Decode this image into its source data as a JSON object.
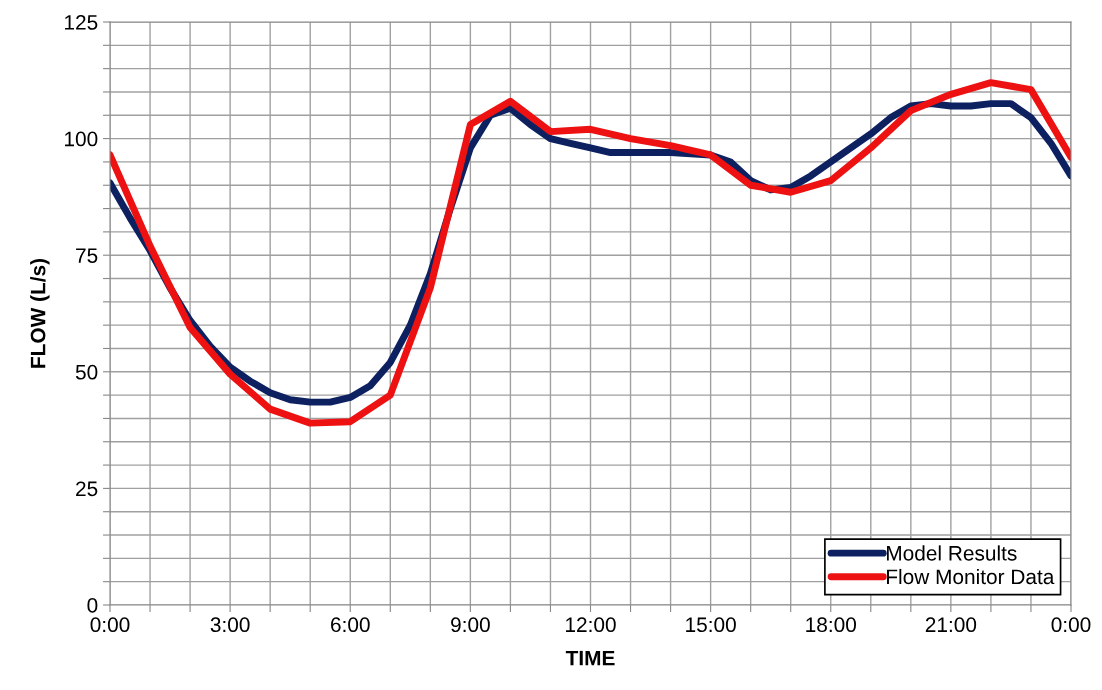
{
  "chart_data": {
    "type": "line",
    "xlabel": "TIME",
    "ylabel": "FLOW (L/s)",
    "xlim": [
      0,
      24
    ],
    "ylim": [
      0,
      125
    ],
    "xticks": [
      {
        "value": 0,
        "label": "0:00"
      },
      {
        "value": 1,
        "label": null
      },
      {
        "value": 2,
        "label": null
      },
      {
        "value": 3,
        "label": "3:00"
      },
      {
        "value": 4,
        "label": null
      },
      {
        "value": 5,
        "label": null
      },
      {
        "value": 6,
        "label": "6:00"
      },
      {
        "value": 7,
        "label": null
      },
      {
        "value": 8,
        "label": null
      },
      {
        "value": 9,
        "label": "9:00"
      },
      {
        "value": 10,
        "label": null
      },
      {
        "value": 11,
        "label": null
      },
      {
        "value": 12,
        "label": "12:00"
      },
      {
        "value": 13,
        "label": null
      },
      {
        "value": 14,
        "label": null
      },
      {
        "value": 15,
        "label": "15:00"
      },
      {
        "value": 16,
        "label": null
      },
      {
        "value": 17,
        "label": null
      },
      {
        "value": 18,
        "label": "18:00"
      },
      {
        "value": 19,
        "label": null
      },
      {
        "value": 20,
        "label": null
      },
      {
        "value": 21,
        "label": "21:00"
      },
      {
        "value": 22,
        "label": null
      },
      {
        "value": 23,
        "label": null
      },
      {
        "value": 24,
        "label": "0:00"
      }
    ],
    "yticks": [
      0,
      {
        "value": 5,
        "label": null
      },
      {
        "value": 10,
        "label": null
      },
      {
        "value": 15,
        "label": null
      },
      {
        "value": 20,
        "label": null
      },
      25,
      {
        "value": 30,
        "label": null
      },
      {
        "value": 35,
        "label": null
      },
      {
        "value": 40,
        "label": null
      },
      {
        "value": 45,
        "label": null
      },
      50,
      {
        "value": 55,
        "label": null
      },
      {
        "value": 60,
        "label": null
      },
      {
        "value": 65,
        "label": null
      },
      {
        "value": 70,
        "label": null
      },
      75,
      {
        "value": 80,
        "label": null
      },
      {
        "value": 85,
        "label": null
      },
      {
        "value": 90,
        "label": null
      },
      {
        "value": 95,
        "label": null
      },
      100,
      {
        "value": 105,
        "label": null
      },
      {
        "value": 110,
        "label": null
      },
      {
        "value": 115,
        "label": null
      },
      {
        "value": 120,
        "label": null
      },
      125
    ],
    "grid": true,
    "legend": "bottom right",
    "line_style": "solid",
    "marker": "none",
    "series": [
      {
        "name": "Model Results",
        "color": "#0d2160",
        "x": [
          0,
          0.5,
          1,
          1.5,
          2,
          2.5,
          3,
          3.5,
          4,
          4.5,
          5,
          5.5,
          6,
          6.5,
          7,
          7.5,
          8,
          8.5,
          9,
          9.5,
          10,
          10.5,
          11,
          11.5,
          12,
          12.5,
          13,
          14,
          15,
          15.5,
          16,
          16.5,
          17,
          17.5,
          18,
          18.5,
          19,
          19.5,
          20,
          20.5,
          21,
          21.5,
          22,
          22.5,
          23,
          23.5,
          24
        ],
        "values": [
          90.5,
          83,
          76,
          68,
          61,
          55.5,
          51,
          48,
          45.5,
          44,
          43.5,
          43.5,
          44.5,
          47,
          52,
          60,
          71,
          85,
          98,
          105,
          106.5,
          103,
          100,
          99,
          98,
          97,
          97,
          97,
          96.5,
          95,
          91,
          89,
          89.5,
          92,
          95,
          98,
          101,
          104.5,
          107,
          107.5,
          107,
          107,
          107.5,
          107.5,
          104.5,
          99,
          92
        ]
      },
      {
        "name": "Flow Monitor Data",
        "color": "#ee1111",
        "x": [
          0,
          1,
          2,
          3,
          4,
          5,
          6,
          7,
          8,
          9,
          10,
          11,
          12,
          13,
          14,
          15,
          16,
          17,
          18,
          19,
          20,
          21,
          22,
          23,
          24
        ],
        "values": [
          96.5,
          77,
          59.5,
          49.5,
          42,
          39,
          39.3,
          45,
          68,
          103,
          108,
          101.5,
          102,
          100,
          98.5,
          96.5,
          90,
          88.5,
          91,
          98,
          106,
          109.5,
          112,
          110.5,
          96
        ]
      }
    ]
  }
}
